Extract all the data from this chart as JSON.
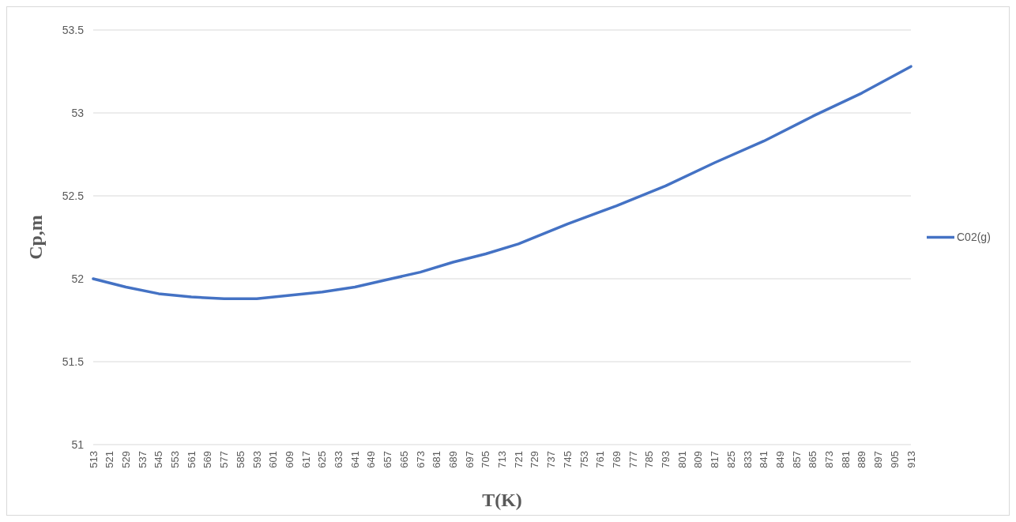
{
  "chart_data": {
    "type": "line",
    "xlabel": "T(K)",
    "ylabel": "Cp,m",
    "x": [
      513,
      529,
      545,
      561,
      577,
      593,
      609,
      625,
      641,
      657,
      673,
      689,
      705,
      721,
      745,
      769,
      793,
      817,
      841,
      865,
      889,
      913
    ],
    "series": [
      {
        "name": "C02(g)",
        "color": "#4472c4",
        "values": [
          52.0,
          51.95,
          51.91,
          51.89,
          51.88,
          51.88,
          51.9,
          51.92,
          51.95,
          51.995,
          52.04,
          52.1,
          52.15,
          52.21,
          52.33,
          52.44,
          52.56,
          52.7,
          52.83,
          52.98,
          53.12,
          53.28
        ]
      }
    ],
    "xlim": [
      513,
      913
    ],
    "xticks": [
      513,
      521,
      529,
      537,
      545,
      553,
      561,
      569,
      577,
      585,
      593,
      601,
      609,
      617,
      625,
      633,
      641,
      649,
      657,
      665,
      673,
      681,
      689,
      697,
      705,
      713,
      721,
      729,
      737,
      745,
      753,
      761,
      769,
      777,
      785,
      793,
      801,
      809,
      817,
      825,
      833,
      841,
      849,
      857,
      865,
      873,
      881,
      889,
      897,
      905,
      913
    ],
    "ylim": [
      51,
      53.5
    ],
    "yticks": [
      51,
      51.5,
      52,
      52.5,
      53,
      53.5
    ],
    "grid": "y",
    "legend": "right",
    "marker": "none",
    "line_style": "solid"
  }
}
